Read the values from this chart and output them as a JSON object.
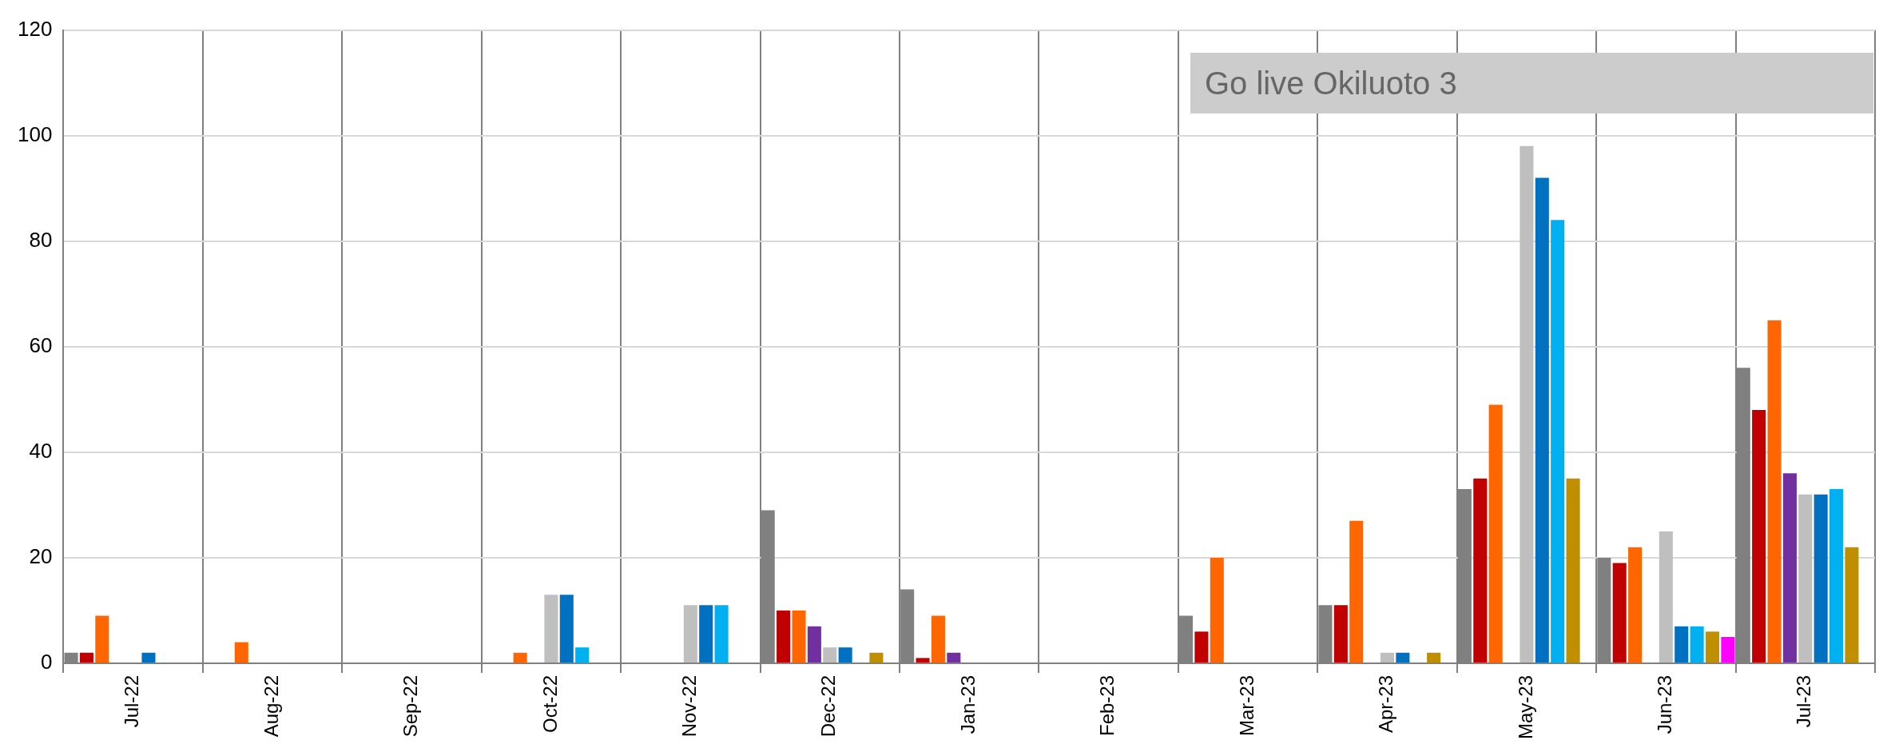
{
  "chart_data": {
    "type": "bar",
    "categories": [
      "Jul-22",
      "Aug-22",
      "Sep-22",
      "Oct-22",
      "Nov-22",
      "Dec-22",
      "Jan-23",
      "Feb-23",
      "Mar-23",
      "Apr-23",
      "May-23",
      "Jun-23",
      "Jul-23"
    ],
    "series": [
      {
        "color": "#808080",
        "values": [
          2,
          0,
          0,
          0,
          0,
          29,
          14,
          0,
          9,
          11,
          33,
          20,
          56
        ]
      },
      {
        "color": "#c00000",
        "values": [
          2,
          0,
          0,
          0,
          0,
          10,
          1,
          0,
          6,
          11,
          35,
          19,
          48
        ]
      },
      {
        "color": "#ff6600",
        "values": [
          9,
          4,
          0,
          2,
          0,
          10,
          9,
          0,
          20,
          27,
          49,
          22,
          65
        ]
      },
      {
        "color": "#7030a0",
        "values": [
          0,
          0,
          0,
          0,
          0,
          7,
          2,
          0,
          0,
          0,
          0,
          0,
          36
        ]
      },
      {
        "color": "#bfbfbf",
        "values": [
          0,
          0,
          0,
          13,
          11,
          3,
          0,
          0,
          0,
          2,
          98,
          25,
          32
        ]
      },
      {
        "color": "#0070c0",
        "values": [
          2,
          0,
          0,
          13,
          11,
          3,
          0,
          0,
          0,
          2,
          92,
          7,
          32
        ]
      },
      {
        "color": "#00b0f0",
        "values": [
          0,
          0,
          0,
          3,
          11,
          0,
          0,
          0,
          0,
          0,
          84,
          7,
          33
        ]
      },
      {
        "color": "#bf8f00",
        "values": [
          0,
          0,
          0,
          0,
          0,
          2,
          0,
          0,
          0,
          2,
          35,
          6,
          22
        ]
      },
      {
        "color": "#ff00ff",
        "values": [
          0,
          0,
          0,
          0,
          0,
          0,
          0,
          0,
          0,
          0,
          0,
          5,
          0
        ]
      }
    ],
    "ylim": [
      0,
      120
    ],
    "yticks": [
      0,
      20,
      40,
      60,
      80,
      100,
      120
    ],
    "grid": true,
    "legend": false,
    "annotations": [
      "Go live Okiluoto 3"
    ]
  }
}
